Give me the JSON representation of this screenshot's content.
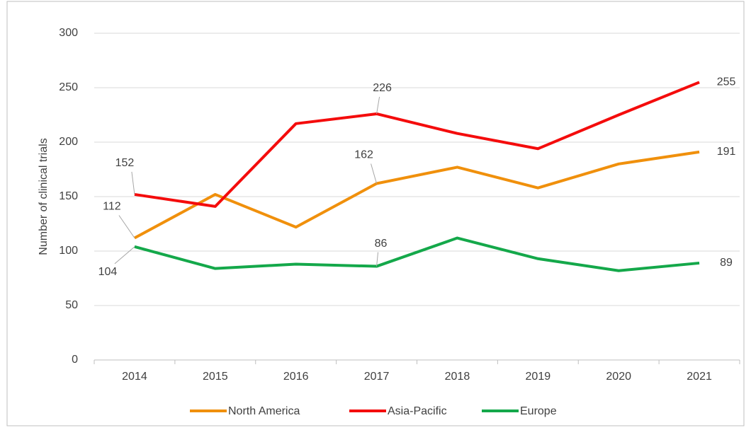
{
  "chart_data": {
    "type": "line",
    "y_axis_label": "Number of clinical trials",
    "categories": [
      "2014",
      "2015",
      "2016",
      "2017",
      "2018",
      "2019",
      "2020",
      "2021"
    ],
    "series": [
      {
        "name": "North America",
        "color": "#f0900c",
        "values": [
          112,
          152,
          122,
          162,
          177,
          158,
          180,
          191
        ],
        "value_labels": [
          "112",
          null,
          null,
          "162",
          null,
          null,
          null,
          "191"
        ]
      },
      {
        "name": "Asia-Pacific",
        "color": "#f40c0c",
        "values": [
          152,
          141,
          217,
          226,
          208,
          194,
          225,
          255
        ],
        "value_labels": [
          "152",
          null,
          null,
          "226",
          null,
          null,
          null,
          "255"
        ]
      },
      {
        "name": "Europe",
        "color": "#14a84a",
        "values": [
          104,
          84,
          88,
          86,
          112,
          93,
          82,
          89
        ],
        "value_labels": [
          "104",
          null,
          null,
          "86",
          null,
          null,
          null,
          "89"
        ]
      }
    ],
    "ylim": [
      0,
      300
    ],
    "yticks": [
      0,
      50,
      100,
      150,
      200,
      250,
      300
    ],
    "grid": true,
    "legend": "bottom"
  }
}
